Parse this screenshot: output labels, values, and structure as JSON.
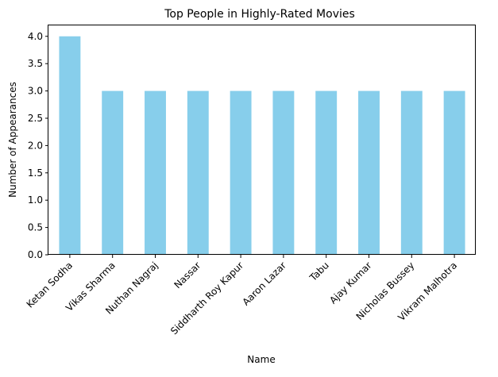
{
  "chart_data": {
    "type": "bar",
    "title": "Top People in Highly-Rated Movies",
    "xlabel": "Name",
    "ylabel": "Number of Appearances",
    "categories": [
      "Ketan Sodha",
      "Vikas Sharma",
      "Nuthan Nagraj",
      "Nassar",
      "Siddharth Roy Kapur",
      "Aaron Lazar",
      "Tabu",
      "Ajay Kumar",
      "Nicholas Bussey",
      "Vikram Malhotra"
    ],
    "values": [
      4,
      3,
      3,
      3,
      3,
      3,
      3,
      3,
      3,
      3
    ],
    "ylim": [
      0,
      4.2
    ],
    "yticks": [
      "0.0",
      "0.5",
      "1.0",
      "1.5",
      "2.0",
      "2.5",
      "3.0",
      "3.5",
      "4.0"
    ],
    "bar_color": "#87ceeb",
    "grid": false,
    "legend": false
  }
}
